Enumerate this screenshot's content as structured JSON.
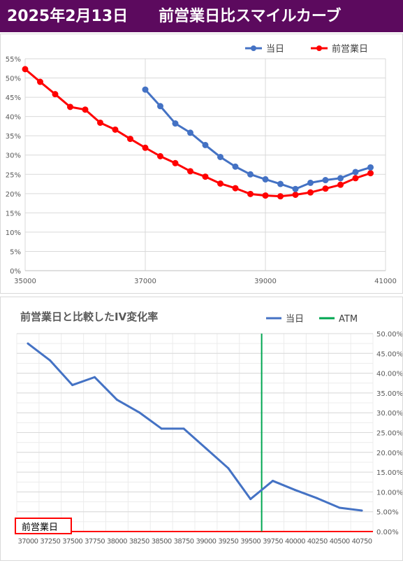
{
  "header": {
    "title": "2025年2月13日　　前営業日比スマイルカーブ",
    "background": "#5c0a5e"
  },
  "chart_data": [
    {
      "type": "line",
      "title": "",
      "x_ticks": [
        "35000",
        "37000",
        "39000",
        "41000"
      ],
      "y_ticks": [
        "0%",
        "5%",
        "10%",
        "15%",
        "20%",
        "25%",
        "30%",
        "35%",
        "40%",
        "45%",
        "50%",
        "55%"
      ],
      "xlim": [
        35000,
        41000
      ],
      "ylim": [
        0,
        55
      ],
      "grid": true,
      "legend_position": "top-right",
      "series": [
        {
          "name": "当日",
          "color": "#4472c4",
          "x": [
            37000,
            37250,
            37500,
            37750,
            38000,
            38250,
            38500,
            38750,
            39000,
            39250,
            39500,
            39750,
            40000,
            40250,
            40500,
            40750
          ],
          "y": [
            47.0,
            42.7,
            38.2,
            35.8,
            32.6,
            29.5,
            27.0,
            25.0,
            23.7,
            22.5,
            21.2,
            22.8,
            23.5,
            24.0,
            25.6,
            26.8
          ]
        },
        {
          "name": "前営業日",
          "color": "#ff0000",
          "x": [
            35000,
            35250,
            35500,
            35750,
            36000,
            36250,
            36500,
            36750,
            37000,
            37250,
            37500,
            37750,
            38000,
            38250,
            38500,
            38750,
            39000,
            39250,
            39500,
            39750,
            40000,
            40250,
            40500,
            40750
          ],
          "y": [
            52.3,
            49.0,
            45.8,
            42.5,
            41.8,
            38.4,
            36.6,
            34.2,
            31.9,
            29.7,
            27.9,
            25.8,
            24.4,
            22.6,
            21.4,
            19.9,
            19.5,
            19.3,
            19.7,
            20.3,
            21.3,
            22.3,
            24.0,
            25.3
          ]
        }
      ]
    },
    {
      "type": "line",
      "title": "前営業日と比較したIV変化率",
      "categories": [
        "37000",
        "37250",
        "37500",
        "37750",
        "38000",
        "38250",
        "38500",
        "38750",
        "39000",
        "39250",
        "39500",
        "39750",
        "40000",
        "40250",
        "40500",
        "40750"
      ],
      "y_ticks": [
        "0.00%",
        "5.00%",
        "10.00%",
        "15.00%",
        "20.00%",
        "25.00%",
        "30.00%",
        "35.00%",
        "40.00%",
        "45.00%",
        "50.00%"
      ],
      "ylim": [
        0,
        50
      ],
      "y_axis_side": "right",
      "grid": true,
      "legend_position": "top-right",
      "series": [
        {
          "name": "当日",
          "color": "#4472c4",
          "values": [
            47.5,
            43.2,
            37.0,
            39.0,
            33.3,
            30.1,
            26.0,
            26.0,
            21.0,
            16.0,
            8.2,
            12.8,
            10.5,
            8.4,
            6.0,
            5.3
          ]
        }
      ],
      "atm": {
        "name": "ATM",
        "color": "#00a651",
        "x_index": 10.5
      },
      "baseline": {
        "label": "前営業日",
        "value": 0,
        "color": "#ff0000"
      }
    }
  ]
}
